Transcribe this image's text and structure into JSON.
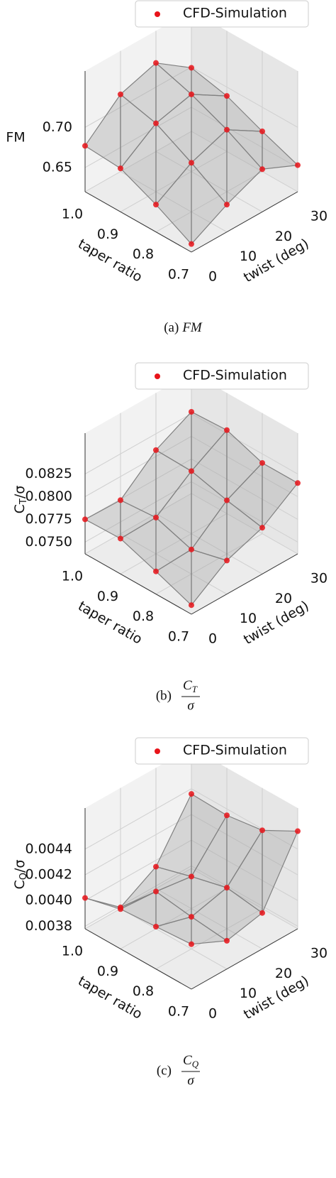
{
  "chart_data": [
    {
      "type": "surface3d",
      "caption_label": "(a)",
      "caption_symbol": "FM",
      "xlabel": "taper ratio",
      "ylabel": "twist (deg)",
      "zlabel": {
        "main": "FM"
      },
      "x": [
        0.7,
        0.8,
        0.9,
        1.0
      ],
      "y": [
        0,
        10,
        20,
        30
      ],
      "series": [
        {
          "name": "CFD-Simulation",
          "color": "#e8141a",
          "z": [
            [
              0.63,
              0.654,
              0.673,
              0.653
            ],
            [
              0.654,
              0.681,
              0.697,
              0.67
            ],
            [
              0.674,
              0.705,
              0.716,
              0.689
            ],
            [
              0.677,
              0.716,
              0.73,
              0.699
            ]
          ]
        }
      ],
      "xlim": [
        0.7,
        1.0
      ],
      "ylim": [
        0,
        30
      ],
      "zlim": [
        0.62,
        0.77
      ],
      "xticks": [
        0.7,
        0.8,
        0.9,
        {
          "value": 1.0,
          "label": "1.0"
        }
      ],
      "yticks": [
        0,
        10,
        20,
        30
      ],
      "zticks": [
        0.65,
        {
          "value": 0.7,
          "label": "0.70"
        }
      ],
      "grid": true,
      "legend": "upper right"
    },
    {
      "type": "surface3d",
      "caption_label": "(b)",
      "caption_fraction": {
        "numerator": "C",
        "subscript": "T",
        "denominator": "σ"
      },
      "xlabel": "taper ratio",
      "ylabel": "twist (deg)",
      "zlabel": {
        "main": "C",
        "sub": "T",
        "after": "/σ"
      },
      "x": [
        0.7,
        0.8,
        0.9,
        1.0
      ],
      "y": [
        0,
        10,
        20,
        30
      ],
      "series": [
        {
          "name": "CFD-Simulation",
          "color": "#e8141a",
          "z": [
            [
              0.0747,
              0.0774,
              0.0788,
              0.0815
            ],
            [
              0.0762,
              0.0764,
              0.0796,
              0.0815
            ],
            [
              0.0776,
              0.0777,
              0.0806,
              0.0829
            ],
            [
              0.0775,
              0.0774,
              0.0807,
              0.0827
            ]
          ]
        }
      ],
      "xlim": [
        0.7,
        1.0
      ],
      "ylim": [
        0,
        30
      ],
      "zlim": [
        0.0737,
        0.087
      ],
      "xticks": [
        0.7,
        0.8,
        0.9,
        {
          "value": 1.0,
          "label": "1.0"
        }
      ],
      "yticks": [
        0,
        10,
        20,
        30
      ],
      "zticks": [
        {
          "value": 0.075,
          "label": "0.0750"
        },
        0.0775,
        {
          "value": 0.08,
          "label": "0.0800"
        },
        0.0825
      ],
      "grid": true,
      "legend": "upper right"
    },
    {
      "type": "surface3d",
      "caption_label": "(c)",
      "caption_fraction": {
        "numerator": "C",
        "subscript": "Q",
        "denominator": "σ"
      },
      "xlabel": "taper ratio",
      "ylabel": "twist (deg)",
      "zlabel": {
        "main": "C",
        "sub": "Q",
        "after": "/σ"
      },
      "x": [
        0.7,
        0.8,
        0.9,
        1.0
      ],
      "y": [
        0,
        10,
        20,
        30
      ],
      "series": [
        {
          "name": "CFD-Simulation",
          "color": "#e8141a",
          "z": [
            [
              0.00413,
              0.004,
              0.00406,
              0.00454
            ],
            [
              0.00411,
              0.00403,
              0.0041,
              0.00439
            ],
            [
              0.00409,
              0.00407,
              0.00403,
              0.00435
            ],
            [
              0.00402,
              0.00379,
              0.00395,
              0.00436
            ]
          ]
        }
      ],
      "xlim": [
        0.7,
        1.0
      ],
      "ylim": [
        0,
        30
      ],
      "zlim": [
        0.00378,
        0.00472
      ],
      "xticks": [
        0.7,
        0.8,
        0.9,
        {
          "value": 1.0,
          "label": "1.0"
        }
      ],
      "yticks": [
        0,
        10,
        20,
        30
      ],
      "zticks": [
        0.0038,
        {
          "value": 0.004,
          "label": "0.0040"
        },
        0.0042,
        0.0044
      ],
      "grid": true,
      "legend": "upper right"
    }
  ]
}
